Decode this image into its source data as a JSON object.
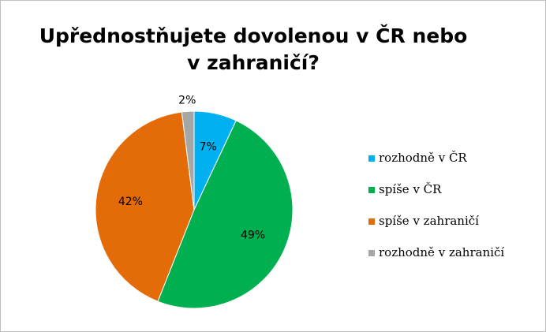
{
  "chart_data": {
    "type": "pie",
    "title": "Upřednostňujete dovolenou v ČR nebo v zahraničí?",
    "categories": [
      "rozhodně v ČR",
      "spíše v ČR",
      "spíše v zahraničí",
      "rozhodně v zahraničí"
    ],
    "values": [
      7,
      49,
      42,
      2
    ],
    "value_labels": [
      "7%",
      "49%",
      "42%",
      "2%"
    ],
    "colors": [
      "#00b0f0",
      "#00b050",
      "#e36c09",
      "#a6a6a6"
    ],
    "legend": "right"
  }
}
